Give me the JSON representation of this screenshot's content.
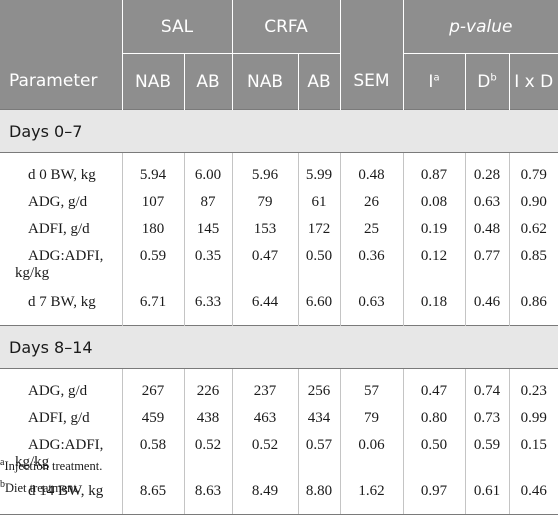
{
  "headers": {
    "groups": [
      "SAL",
      "CRFA",
      "p-value"
    ],
    "parameter": "Parameter",
    "cols": [
      "NAB",
      "AB",
      "NAB",
      "AB",
      "SEM",
      "I",
      "D",
      "I x D"
    ],
    "sup_i": "a",
    "sup_d": "b"
  },
  "sections": [
    {
      "title": "Days 0–7",
      "rows": [
        {
          "param": [
            "d 0 BW, kg"
          ],
          "values": [
            "5.94",
            "6.00",
            "5.96",
            "5.99",
            "0.48",
            "0.87",
            "0.28",
            "0.79"
          ]
        },
        {
          "param": [
            "ADG, g/d"
          ],
          "values": [
            "107",
            "87",
            "79",
            "61",
            "26",
            "0.08",
            "0.63",
            "0.90"
          ]
        },
        {
          "param": [
            "ADFI, g/d"
          ],
          "values": [
            "180",
            "145",
            "153",
            "172",
            "25",
            "0.19",
            "0.48",
            "0.62"
          ]
        },
        {
          "param": [
            "ADG:ADFI,",
            "kg/kg"
          ],
          "values": [
            "0.59",
            "0.35",
            "0.47",
            "0.50",
            "0.36",
            "0.12",
            "0.77",
            "0.85"
          ]
        },
        {
          "param": [
            "d 7 BW, kg"
          ],
          "values": [
            "6.71",
            "6.33",
            "6.44",
            "6.60",
            "0.63",
            "0.18",
            "0.46",
            "0.86"
          ]
        }
      ]
    },
    {
      "title": "Days 8–14",
      "rows": [
        {
          "param": [
            "ADG, g/d"
          ],
          "values": [
            "267",
            "226",
            "237",
            "256",
            "57",
            "0.47",
            "0.74",
            "0.23"
          ]
        },
        {
          "param": [
            "ADFI, g/d"
          ],
          "values": [
            "459",
            "438",
            "463",
            "434",
            "79",
            "0.80",
            "0.73",
            "0.99"
          ]
        },
        {
          "param": [
            "ADG:ADFI,",
            "kg/kg"
          ],
          "values": [
            "0.58",
            "0.52",
            "0.52",
            "0.57",
            "0.06",
            "0.50",
            "0.59",
            "0.15"
          ]
        },
        {
          "param": [
            "d 14 BW, kg"
          ],
          "values": [
            "8.65",
            "8.63",
            "8.49",
            "8.80",
            "1.62",
            "0.97",
            "0.61",
            "0.46"
          ]
        }
      ]
    }
  ],
  "footnotes": [
    {
      "marker": "a",
      "text": "Injection treatment."
    },
    {
      "marker": "b",
      "text": "Diet treatment."
    }
  ]
}
